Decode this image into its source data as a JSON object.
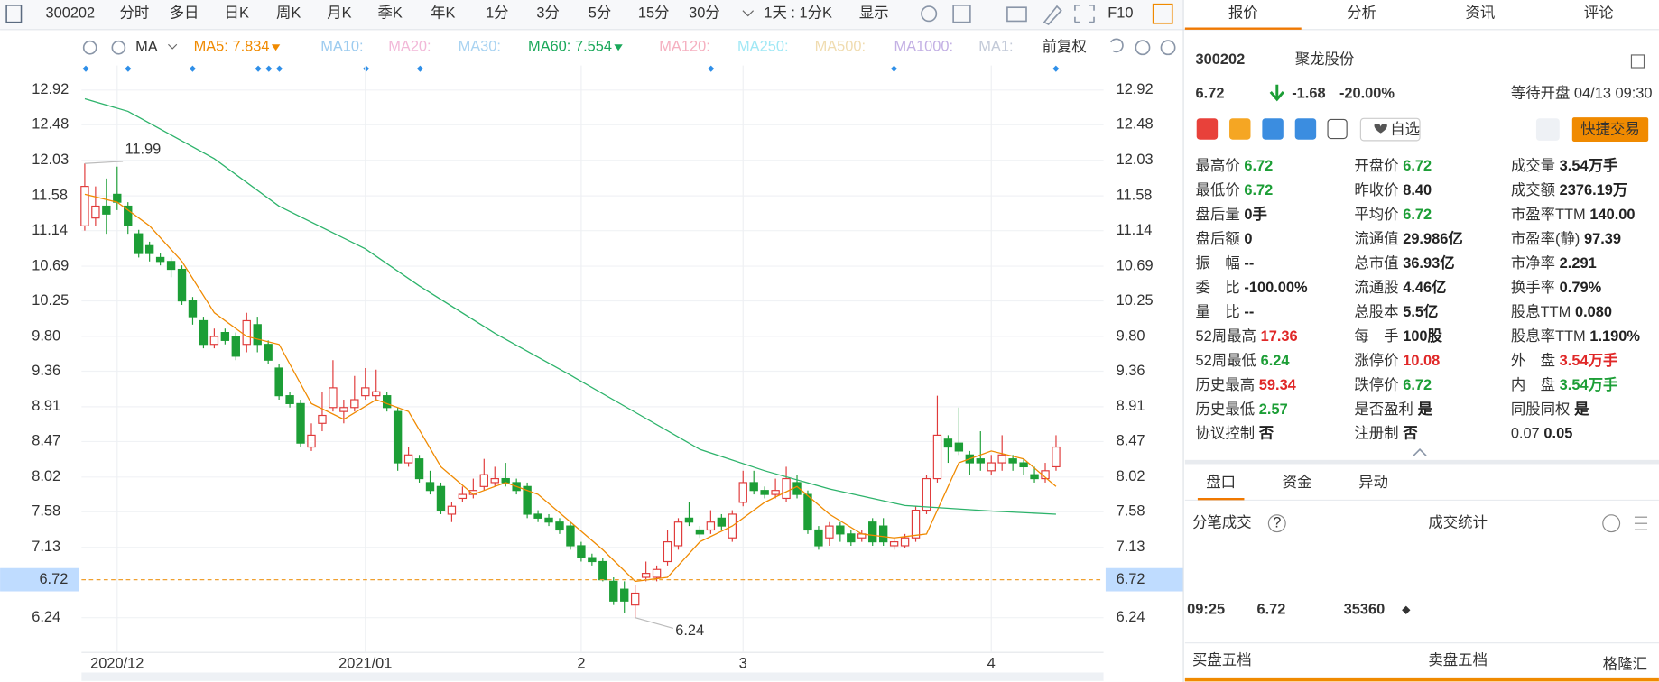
{
  "toolbar": {
    "code": "300202",
    "periods": [
      "分时",
      "多日",
      "日K",
      "周K",
      "月K",
      "季K",
      "年K",
      "1分",
      "3分",
      "5分",
      "15分",
      "30分"
    ],
    "active_period": 2,
    "interval": "1天 : 1分K",
    "display": "显示",
    "f10": "F10"
  },
  "indicators": {
    "label": "MA",
    "items": [
      {
        "name": "MA5:",
        "value": 7.834,
        "color": "#f08a00"
      },
      {
        "name": "MA10:",
        "color": "#9ccbef"
      },
      {
        "name": "MA20:",
        "color": "#f2b8d8"
      },
      {
        "name": "MA30:",
        "color": "#a9d3f1"
      },
      {
        "name": "MA60:",
        "value": 7.554,
        "color": "#1aa85a"
      },
      {
        "name": "MA120:",
        "color": "#f5b0c0"
      },
      {
        "name": "MA250:",
        "color": "#a0e8f5"
      },
      {
        "name": "MA500:",
        "color": "#f0dcb0"
      },
      {
        "name": "MA1000:",
        "color": "#c3b0e4"
      },
      {
        "name": "MA1:",
        "color": "#c3cad8"
      }
    ],
    "adjust": "前复权"
  },
  "chart_data": {
    "type": "candlestick",
    "open": [
      11.2,
      11.3,
      11.45,
      11.6,
      11.45,
      11.1,
      10.95,
      10.8,
      10.75,
      10.65,
      10.25,
      10.0,
      9.7,
      9.85,
      9.8,
      9.7,
      9.95,
      9.7,
      9.4,
      9.05,
      8.95,
      8.4,
      8.7,
      8.9,
      8.85,
      8.9,
      9.05,
      9.05,
      9.05,
      8.85,
      8.2,
      8.25,
      7.95,
      7.9,
      7.55,
      7.75,
      7.8,
      7.9,
      7.95,
      8.0,
      7.95,
      7.9,
      7.55,
      7.5,
      7.45,
      7.4,
      7.15,
      7.0,
      6.95,
      6.7,
      6.6,
      6.4,
      6.75,
      6.75,
      6.95,
      7.15,
      7.5,
      7.35,
      7.35,
      7.5,
      7.25,
      7.7,
      7.95,
      7.85,
      7.8,
      7.75,
      7.95,
      7.8,
      7.35,
      7.25,
      7.4,
      7.3,
      7.25,
      7.45,
      7.4,
      7.15,
      7.15,
      7.25,
      7.6,
      8.0,
      8.5,
      8.45,
      8.3,
      8.25,
      8.1,
      8.2,
      8.25,
      8.2,
      8.05,
      8.0,
      8.15
    ],
    "high": [
      11.99,
      11.7,
      11.8,
      11.95,
      11.5,
      11.15,
      11.0,
      10.85,
      10.8,
      10.7,
      10.3,
      10.05,
      9.9,
      9.9,
      9.85,
      10.1,
      10.05,
      9.75,
      9.45,
      9.1,
      9.0,
      8.7,
      9.1,
      9.5,
      9.0,
      9.3,
      9.4,
      9.38,
      9.1,
      8.9,
      8.4,
      8.3,
      8.1,
      7.95,
      7.7,
      7.9,
      8.0,
      8.25,
      8.15,
      8.2,
      8.0,
      7.95,
      7.6,
      7.55,
      7.5,
      7.45,
      7.2,
      7.05,
      7.0,
      6.75,
      6.7,
      6.65,
      6.95,
      6.9,
      7.35,
      7.5,
      7.7,
      7.4,
      7.6,
      7.55,
      7.6,
      8.1,
      8.1,
      7.9,
      8.0,
      8.15,
      8.05,
      7.85,
      7.4,
      7.45,
      7.45,
      7.35,
      7.35,
      7.5,
      7.5,
      7.25,
      7.3,
      7.65,
      8.05,
      9.05,
      8.55,
      8.9,
      8.35,
      8.6,
      8.3,
      8.55,
      8.3,
      8.25,
      8.15,
      8.2,
      8.55
    ],
    "low": [
      11.14,
      11.2,
      11.1,
      11.4,
      11.1,
      10.8,
      10.75,
      10.7,
      10.55,
      10.2,
      9.95,
      9.65,
      9.65,
      9.7,
      9.5,
      9.6,
      9.6,
      9.45,
      9.0,
      8.9,
      8.4,
      8.35,
      8.6,
      8.85,
      8.7,
      8.85,
      9.0,
      9.0,
      8.85,
      8.1,
      8.15,
      7.95,
      7.8,
      7.55,
      7.45,
      7.7,
      7.75,
      7.85,
      7.9,
      7.9,
      7.8,
      7.5,
      7.45,
      7.4,
      7.3,
      7.1,
      6.95,
      6.9,
      6.7,
      6.4,
      6.3,
      6.24,
      6.7,
      6.7,
      6.9,
      7.1,
      7.4,
      7.25,
      7.3,
      7.35,
      7.2,
      7.65,
      7.8,
      7.75,
      7.75,
      7.7,
      7.75,
      7.3,
      7.1,
      7.15,
      7.2,
      7.15,
      7.2,
      7.15,
      7.15,
      7.1,
      7.12,
      7.2,
      7.55,
      7.95,
      8.2,
      8.3,
      8.05,
      8.1,
      8.05,
      8.1,
      8.1,
      8.05,
      7.95,
      7.95,
      8.1
    ],
    "close": [
      11.7,
      11.45,
      11.35,
      11.5,
      11.2,
      10.85,
      10.85,
      10.75,
      10.65,
      10.25,
      10.05,
      9.7,
      9.8,
      9.75,
      9.55,
      10.0,
      9.7,
      9.5,
      9.05,
      8.95,
      8.45,
      8.55,
      8.8,
      9.15,
      8.9,
      9.0,
      9.15,
      9.1,
      8.9,
      8.2,
      8.3,
      8.0,
      7.85,
      7.6,
      7.65,
      7.8,
      7.85,
      8.05,
      8.0,
      7.95,
      7.85,
      7.55,
      7.5,
      7.45,
      7.35,
      7.15,
      7.0,
      6.95,
      6.72,
      6.45,
      6.45,
      6.55,
      6.8,
      6.85,
      7.2,
      7.45,
      7.45,
      7.3,
      7.45,
      7.4,
      7.55,
      7.95,
      7.85,
      7.8,
      7.85,
      8.0,
      7.8,
      7.35,
      7.15,
      7.4,
      7.3,
      7.2,
      7.3,
      7.2,
      7.2,
      7.2,
      7.25,
      7.6,
      8.0,
      8.55,
      8.4,
      8.35,
      8.2,
      8.2,
      8.2,
      8.3,
      8.2,
      8.15,
      8.0,
      8.1,
      8.4
    ],
    "up_color": "#e03a3a",
    "down_color": "#1c9e36",
    "ma_lines": [
      {
        "color": "#f08a00",
        "x": [
          0,
          3,
          6,
          9,
          12,
          15,
          18,
          21,
          24,
          27,
          30,
          33,
          36,
          39,
          42,
          45,
          48,
          51,
          54,
          57,
          60,
          63,
          66,
          69,
          72,
          75,
          78,
          81,
          84,
          87,
          90
        ],
        "values": [
          11.6,
          11.5,
          11.2,
          10.75,
          10.1,
          9.8,
          9.7,
          8.95,
          8.75,
          9.0,
          8.85,
          8.15,
          7.8,
          7.95,
          7.8,
          7.45,
          7.1,
          6.7,
          6.75,
          7.2,
          7.4,
          7.7,
          7.9,
          7.55,
          7.3,
          7.25,
          7.3,
          8.2,
          8.35,
          8.25,
          7.9
        ]
      },
      {
        "color": "#2db36b",
        "x": [
          0,
          4,
          12,
          18,
          26,
          31,
          38,
          45,
          51,
          57,
          63,
          69,
          76,
          84,
          90
        ],
        "values": [
          12.81,
          12.65,
          12.05,
          11.45,
          10.91,
          10.44,
          9.84,
          9.31,
          8.84,
          8.37,
          8.1,
          7.87,
          7.66,
          7.59,
          7.55
        ]
      }
    ],
    "xlim": [
      -0.3,
      94.4
    ],
    "xticks": [
      {
        "value": 3,
        "label": "2020/12"
      },
      {
        "value": 26,
        "label": "2021/01"
      },
      {
        "value": 46,
        "label": "2"
      },
      {
        "value": 61,
        "label": "3"
      },
      {
        "value": 84,
        "label": "4"
      }
    ],
    "ylim": [
      5.8,
      13.23
    ],
    "yticks": [
      12.92,
      12.48,
      12.03,
      11.58,
      11.14,
      10.69,
      10.25,
      {
        "value": 9.8,
        "label": "9.80"
      },
      9.36,
      8.91,
      8.47,
      8.02,
      7.58,
      7.13,
      6.24
    ],
    "grid": true,
    "current_price": 6.72,
    "max_label": 11.99,
    "min_label": 6.24
  },
  "quote": {
    "tabs": [
      "报价",
      "分析",
      "资讯",
      "评论"
    ],
    "active_tab": 0,
    "code": "300202",
    "name": "聚龙股份",
    "price": 6.72,
    "change": -1.68,
    "change_pct": "-20.00%",
    "status": "等待开盘 04/13 09:30",
    "watch": "自选",
    "trade": "快捷交易",
    "fields": [
      [
        {
          "label": "最高价",
          "value": "6.72",
          "tone": "down"
        },
        {
          "label": "开盘价",
          "value": "6.72",
          "tone": "down"
        },
        {
          "label": "成交量",
          "value": "3.54万手",
          "tone": "flat"
        }
      ],
      [
        {
          "label": "最低价",
          "value": "6.72",
          "tone": "down"
        },
        {
          "label": "昨收价",
          "value": "8.40",
          "tone": "flat"
        },
        {
          "label": "成交额",
          "value": "2376.19万",
          "tone": "flat"
        }
      ],
      [
        {
          "label": "盘后量",
          "value": "0手",
          "tone": "flat"
        },
        {
          "label": "平均价",
          "value": "6.72",
          "tone": "down"
        },
        {
          "label": "市盈率TTM",
          "value": "140.00",
          "tone": "flat"
        }
      ],
      [
        {
          "label": "盘后额",
          "value": "0",
          "tone": "flat"
        },
        {
          "label": "流通值",
          "value": "29.986亿",
          "tone": "flat"
        },
        {
          "label": "市盈率(静)",
          "value": "97.39",
          "tone": "flat"
        }
      ],
      [
        {
          "label": "振　幅",
          "value": "--",
          "tone": "flat"
        },
        {
          "label": "总市值",
          "value": "36.93亿",
          "tone": "flat"
        },
        {
          "label": "市净率",
          "value": "2.291",
          "tone": "flat"
        }
      ],
      [
        {
          "label": "委　比",
          "value": "-100.00%",
          "tone": "flat"
        },
        {
          "label": "流通股",
          "value": "4.46亿",
          "tone": "flat"
        },
        {
          "label": "换手率",
          "value": "0.79%",
          "tone": "flat"
        }
      ],
      [
        {
          "label": "量　比",
          "value": "--",
          "tone": "flat"
        },
        {
          "label": "总股本",
          "value": "5.5亿",
          "tone": "flat"
        },
        {
          "label": "股息TTM",
          "value": "0.080",
          "tone": "flat"
        }
      ],
      [
        {
          "label": "52周最高",
          "value": "17.36",
          "tone": "up"
        },
        {
          "label": "每　手",
          "value": "100股",
          "tone": "flat"
        },
        {
          "label": "股息率TTM",
          "value": "1.190%",
          "tone": "flat"
        }
      ],
      [
        {
          "label": "52周最低",
          "value": "6.24",
          "tone": "down"
        },
        {
          "label": "涨停价",
          "value": "10.08",
          "tone": "up"
        },
        {
          "label": "外　盘",
          "value": "3.54万手",
          "tone": "up"
        }
      ],
      [
        {
          "label": "历史最高",
          "value": "59.34",
          "tone": "up"
        },
        {
          "label": "跌停价",
          "value": "6.72",
          "tone": "down"
        },
        {
          "label": "内　盘",
          "value": "3.54万手",
          "tone": "down"
        }
      ],
      [
        {
          "label": "历史最低",
          "value": "2.57",
          "tone": "down"
        },
        {
          "label": "是否盈利",
          "value": "是",
          "tone": "flat"
        },
        {
          "label": "同股同权",
          "value": "是",
          "tone": "flat"
        }
      ],
      [
        {
          "label": "协议控制",
          "value": "否",
          "tone": "flat"
        },
        {
          "label": "注册制",
          "value": "否",
          "tone": "flat"
        },
        {
          "label": "0.07",
          "value": "0.05",
          "tone": "flat"
        }
      ]
    ],
    "detail_tabs": [
      "盘口",
      "资金",
      "异动"
    ],
    "trades_title": "分笔成交",
    "help": "?",
    "stats_title": "成交统计",
    "trades": [
      {
        "time": "09:25",
        "price": "6.72",
        "volume": "35360"
      }
    ],
    "book": [
      "买盘五档",
      "卖盘五档"
    ],
    "watermark": "格隆汇"
  }
}
